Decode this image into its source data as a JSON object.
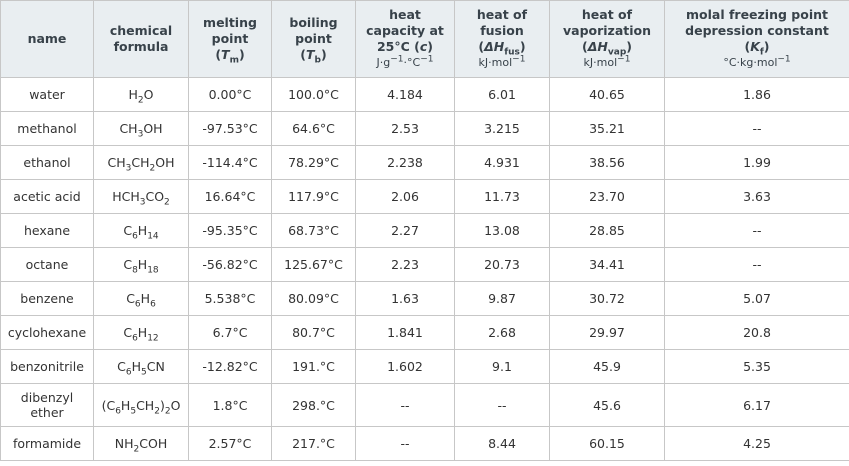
{
  "headers": {
    "name": "name",
    "formula": [
      "chemical",
      "formula"
    ],
    "melting": [
      "melting",
      "point",
      "(",
      "T",
      "m",
      ")"
    ],
    "boiling": [
      "boiling",
      "point",
      "(",
      "T",
      "b",
      ")"
    ],
    "heat_capacity": [
      "heat",
      "capacity at",
      "25°C (",
      "c",
      ")",
      "J·g",
      "−1",
      "·°C",
      "−1"
    ],
    "fusion": [
      "heat of",
      "fusion",
      "(",
      "ΔH",
      "fus",
      ")",
      "kJ·mol",
      "−1"
    ],
    "vaporization": [
      "heat of",
      "vaporization",
      "(",
      "ΔH",
      "vap",
      ")",
      "kJ·mol",
      "−1"
    ],
    "freezing": [
      "molal freezing point",
      "depression constant",
      "(",
      "K",
      "f",
      ")",
      "°C·kg·mol",
      "−1"
    ]
  },
  "rows": [
    {
      "name": "water",
      "formula": [
        [
          "H",
          ""
        ],
        [
          "2",
          "sub"
        ],
        [
          "O",
          ""
        ]
      ],
      "mp": "0.00°C",
      "bp": "100.0°C",
      "c": "4.184",
      "hfus": "6.01",
      "hvap": "40.65",
      "kf": "1.86"
    },
    {
      "name": "methanol",
      "formula": [
        [
          "CH",
          ""
        ],
        [
          "3",
          "sub"
        ],
        [
          "OH",
          ""
        ]
      ],
      "mp": "-97.53°C",
      "bp": "64.6°C",
      "c": "2.53",
      "hfus": "3.215",
      "hvap": "35.21",
      "kf": "--"
    },
    {
      "name": "ethanol",
      "formula": [
        [
          "CH",
          ""
        ],
        [
          "3",
          "sub"
        ],
        [
          "CH",
          ""
        ],
        [
          "2",
          "sub"
        ],
        [
          "OH",
          ""
        ]
      ],
      "mp": "-114.4°C",
      "bp": "78.29°C",
      "c": "2.238",
      "hfus": "4.931",
      "hvap": "38.56",
      "kf": "1.99"
    },
    {
      "name": "acetic acid",
      "formula": [
        [
          "HCH",
          ""
        ],
        [
          "3",
          "sub"
        ],
        [
          "CO",
          ""
        ],
        [
          "2",
          "sub"
        ]
      ],
      "mp": "16.64°C",
      "bp": "117.9°C",
      "c": "2.06",
      "hfus": "11.73",
      "hvap": "23.70",
      "kf": "3.63"
    },
    {
      "name": "hexane",
      "formula": [
        [
          "C",
          ""
        ],
        [
          "6",
          "sub"
        ],
        [
          "H",
          ""
        ],
        [
          "14",
          "sub"
        ]
      ],
      "mp": "-95.35°C",
      "bp": "68.73°C",
      "c": "2.27",
      "hfus": "13.08",
      "hvap": "28.85",
      "kf": "--"
    },
    {
      "name": "octane",
      "formula": [
        [
          "C",
          ""
        ],
        [
          "8",
          "sub"
        ],
        [
          "H",
          ""
        ],
        [
          "18",
          "sub"
        ]
      ],
      "mp": "-56.82°C",
      "bp": "125.67°C",
      "c": "2.23",
      "hfus": "20.73",
      "hvap": "34.41",
      "kf": "--"
    },
    {
      "name": "benzene",
      "formula": [
        [
          "C",
          ""
        ],
        [
          "6",
          "sub"
        ],
        [
          "H",
          ""
        ],
        [
          "6",
          "sub"
        ]
      ],
      "mp": "5.538°C",
      "bp": "80.09°C",
      "c": "1.63",
      "hfus": "9.87",
      "hvap": "30.72",
      "kf": "5.07"
    },
    {
      "name": "cyclohexane",
      "formula": [
        [
          "C",
          ""
        ],
        [
          "6",
          "sub"
        ],
        [
          "H",
          ""
        ],
        [
          "12",
          "sub"
        ]
      ],
      "mp": "6.7°C",
      "bp": "80.7°C",
      "c": "1.841",
      "hfus": "2.68",
      "hvap": "29.97",
      "kf": "20.8"
    },
    {
      "name": "benzonitrile",
      "formula": [
        [
          "C",
          ""
        ],
        [
          "6",
          "sub"
        ],
        [
          "H",
          ""
        ],
        [
          "5",
          "sub"
        ],
        [
          "CN",
          ""
        ]
      ],
      "mp": "-12.82°C",
      "bp": "191.°C",
      "c": "1.602",
      "hfus": "9.1",
      "hvap": "45.9",
      "kf": "5.35"
    },
    {
      "name": "dibenzyl ether",
      "formula": [
        [
          "(C",
          ""
        ],
        [
          "6",
          "sub"
        ],
        [
          "H",
          ""
        ],
        [
          "5",
          "sub"
        ],
        [
          "CH",
          ""
        ],
        [
          "2",
          "sub"
        ],
        [
          ")",
          ""
        ],
        [
          "2",
          "sub"
        ],
        [
          "O",
          ""
        ]
      ],
      "mp": "1.8°C",
      "bp": "298.°C",
      "c": "--",
      "hfus": "--",
      "hvap": "45.6",
      "kf": "6.17"
    },
    {
      "name": "formamide",
      "formula": [
        [
          "NH",
          ""
        ],
        [
          "2",
          "sub"
        ],
        [
          "COH",
          ""
        ]
      ],
      "mp": "2.57°C",
      "bp": "217.°C",
      "c": "--",
      "hfus": "8.44",
      "hvap": "60.15",
      "kf": "4.25"
    }
  ]
}
